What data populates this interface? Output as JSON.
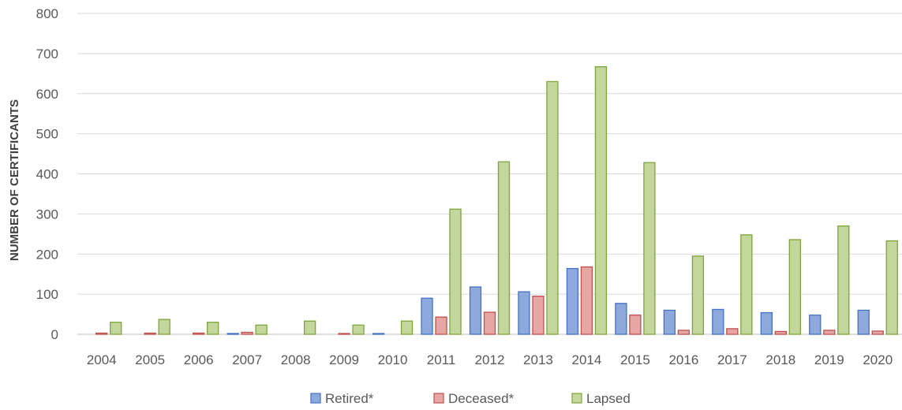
{
  "chart_data": {
    "type": "bar",
    "title": "",
    "xlabel": "",
    "ylabel": "NUMBER OF CERTIFICANTS",
    "ylim": [
      0,
      800
    ],
    "yticks": [
      "0",
      "100",
      "200",
      "300",
      "400",
      "500",
      "600",
      "700",
      "800"
    ],
    "grid": true,
    "legend_position": "bottom",
    "categories": [
      "2004",
      "2005",
      "2006",
      "2007",
      "2008",
      "2009",
      "2010",
      "2011",
      "2012",
      "2013",
      "2014",
      "2015",
      "2016",
      "2017",
      "2018",
      "2019",
      "2020"
    ],
    "series": [
      {
        "name": "Retired*",
        "color": "#8EA9DB",
        "stroke": "#4472C4",
        "values": [
          0,
          0,
          0,
          2,
          0,
          0,
          2,
          90,
          118,
          106,
          164,
          77,
          60,
          62,
          54,
          48,
          60
        ]
      },
      {
        "name": "Deceased*",
        "color": "#E6A6A4",
        "stroke": "#C0504D",
        "values": [
          3,
          3,
          3,
          5,
          0,
          2,
          0,
          43,
          55,
          95,
          168,
          48,
          10,
          14,
          7,
          10,
          8
        ]
      },
      {
        "name": "Lapsed",
        "color": "#C3D69B",
        "stroke": "#7DA53A",
        "values": [
          30,
          37,
          30,
          23,
          33,
          23,
          33,
          312,
          430,
          630,
          667,
          428,
          195,
          248,
          236,
          270,
          233
        ]
      }
    ]
  }
}
